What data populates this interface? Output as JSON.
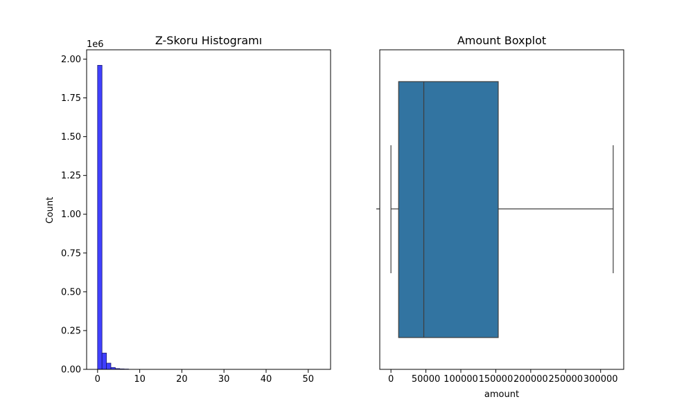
{
  "chart_data": [
    {
      "type": "bar",
      "title": "Z-Skoru Histogramı",
      "xlabel": "",
      "ylabel": "Count",
      "y_offset_label": "1e6",
      "xlim": [
        -2.6,
        55.3
      ],
      "ylim": [
        0,
        2.06
      ],
      "x_ticks": [
        0,
        10,
        20,
        30,
        40,
        50
      ],
      "x_tick_labels": [
        "0",
        "10",
        "20",
        "30",
        "40",
        "50"
      ],
      "y_ticks": [
        0,
        0.25,
        0.5,
        0.75,
        1.0,
        1.25,
        1.5,
        1.75,
        2.0
      ],
      "y_tick_labels": [
        "0.00",
        "0.25",
        "0.50",
        "0.75",
        "1.00",
        "1.25",
        "1.50",
        "1.75",
        "2.00"
      ],
      "bin_edges": [
        0,
        1.05,
        2.1,
        3.15,
        4.2,
        5.25,
        6.3,
        7.35
      ],
      "values": [
        1.96,
        0.105,
        0.04,
        0.012,
        0.005,
        0.003,
        0.002
      ],
      "bar_color": "#0000ff",
      "bar_edge_color": "#1a1a6e",
      "grid": false
    },
    {
      "type": "boxplot",
      "title": "Amount Boxplot",
      "xlabel": "amount",
      "ylabel": "",
      "xlim": [
        -16000,
        333000
      ],
      "x_ticks": [
        0,
        50000,
        100000,
        150000,
        200000,
        250000,
        300000
      ],
      "x_tick_labels": [
        "0",
        "50000",
        "100000",
        "150000",
        "200000",
        "250000",
        "300000"
      ],
      "whisker_low": 0,
      "q1": 11000,
      "median": 47000,
      "q3": 153500,
      "whisker_high": 318000,
      "box_color": "#3274a1",
      "line_color": "#3d3d3d",
      "grid": false
    }
  ]
}
